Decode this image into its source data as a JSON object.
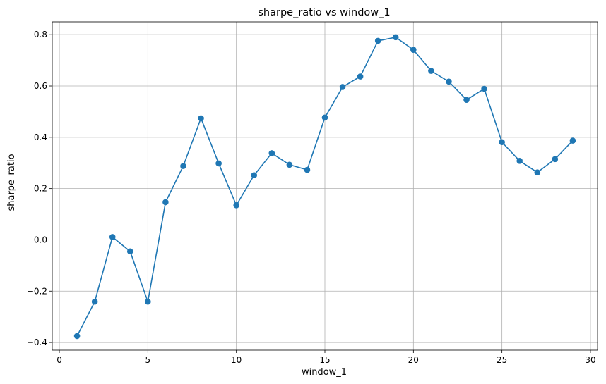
{
  "chart_data": {
    "type": "line",
    "title": "sharpe_ratio vs window_1",
    "xlabel": "window_1",
    "ylabel": "sharpe_ratio",
    "xlim": [
      -0.4,
      30.4
    ],
    "ylim": [
      -0.43,
      0.85
    ],
    "x_ticks": [
      0,
      5,
      10,
      15,
      20,
      25,
      30
    ],
    "y_ticks": [
      -0.4,
      -0.2,
      0.0,
      0.2,
      0.4,
      0.6,
      0.8
    ],
    "x_tick_labels": [
      "0",
      "5",
      "10",
      "15",
      "20",
      "25",
      "30"
    ],
    "y_tick_labels": [
      "−0.4",
      "−0.2",
      "0.0",
      "0.2",
      "0.4",
      "0.6",
      "0.8"
    ],
    "grid": true,
    "markers": true,
    "color": "#1f77b4",
    "series": [
      {
        "x": [
          1,
          2,
          3,
          4,
          5,
          6,
          7,
          8,
          9,
          10,
          11,
          12,
          13,
          14,
          15,
          16,
          17,
          18,
          19,
          20,
          21,
          22,
          23,
          24,
          25,
          26,
          27,
          28,
          29
        ],
        "values": [
          -0.375,
          -0.241,
          0.011,
          -0.045,
          -0.241,
          0.147,
          0.288,
          0.474,
          0.298,
          0.135,
          0.252,
          0.338,
          0.293,
          0.273,
          0.477,
          0.596,
          0.637,
          0.776,
          0.79,
          0.741,
          0.659,
          0.617,
          0.546,
          0.589,
          0.381,
          0.308,
          0.263,
          0.315,
          0.387
        ]
      }
    ]
  }
}
